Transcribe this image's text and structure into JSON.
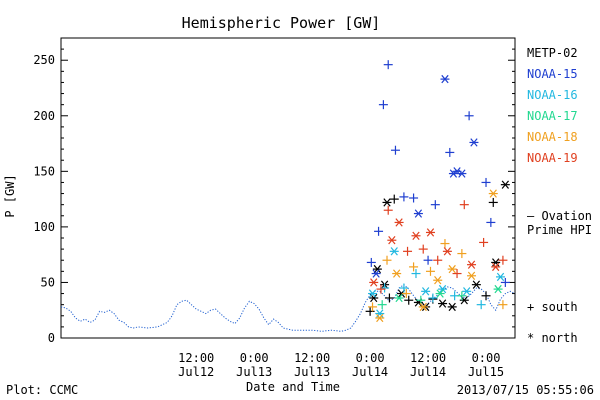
{
  "chart_data": {
    "type": "scatter",
    "title": "Hemispheric Power [GW]",
    "xlabel": "Date and Time",
    "ylabel": "P [GW]",
    "xlim": [
      "2013-07-11 08:00",
      "2013-07-15 06:00"
    ],
    "ylim": [
      0,
      270
    ],
    "x_ticks": [
      {
        "time": "2013-07-12 12:00",
        "line1": "12:00",
        "line2": "Jul12"
      },
      {
        "time": "2013-07-13 00:00",
        "line1": "0:00",
        "line2": "Jul13"
      },
      {
        "time": "2013-07-13 12:00",
        "line1": "12:00",
        "line2": "Jul13"
      },
      {
        "time": "2013-07-14 00:00",
        "line1": "0:00",
        "line2": "Jul14"
      },
      {
        "time": "2013-07-14 12:00",
        "line1": "12:00",
        "line2": "Jul14"
      },
      {
        "time": "2013-07-15 00:00",
        "line1": "0:00",
        "line2": "Jul15"
      }
    ],
    "y_ticks": [
      0,
      50,
      100,
      150,
      200,
      250
    ],
    "legend": {
      "placement": "right",
      "satellites": [
        {
          "name": "METP-02",
          "color": "#000000"
        },
        {
          "name": "NOAA-15",
          "color": "#1f3fd0"
        },
        {
          "name": "NOAA-16",
          "color": "#22b8e0"
        },
        {
          "name": "NOAA-17",
          "color": "#22d890"
        },
        {
          "name": "NOAA-18",
          "color": "#f0a020"
        },
        {
          "name": "NOAA-19",
          "color": "#e04020"
        }
      ],
      "ovation_label_1": "— Ovation",
      "ovation_label_2": "Prime HPI",
      "ovation_color": "#1f5fd0",
      "markers": [
        {
          "symbol": "+",
          "label": "south"
        },
        {
          "symbol": "*",
          "label": "north"
        }
      ]
    },
    "series": [
      {
        "name": "Ovation Prime HPI",
        "kind": "line",
        "color": "#1f5fd0",
        "points": [
          [
            "2013-07-11 08:00",
            28
          ],
          [
            "2013-07-11 09:00",
            27
          ],
          [
            "2013-07-11 10:00",
            24
          ],
          [
            "2013-07-11 11:00",
            18
          ],
          [
            "2013-07-11 12:00",
            15
          ],
          [
            "2013-07-11 13:00",
            17
          ],
          [
            "2013-07-11 14:00",
            14
          ],
          [
            "2013-07-11 15:00",
            16
          ],
          [
            "2013-07-11 16:00",
            24
          ],
          [
            "2013-07-11 17:00",
            23
          ],
          [
            "2013-07-11 18:00",
            25
          ],
          [
            "2013-07-11 19:00",
            22
          ],
          [
            "2013-07-11 20:00",
            16
          ],
          [
            "2013-07-11 21:00",
            14
          ],
          [
            "2013-07-11 22:00",
            10
          ],
          [
            "2013-07-11 23:00",
            9
          ],
          [
            "2013-07-12 00:00",
            10
          ],
          [
            "2013-07-12 02:00",
            9
          ],
          [
            "2013-07-12 04:00",
            10
          ],
          [
            "2013-07-12 06:00",
            14
          ],
          [
            "2013-07-12 07:00",
            20
          ],
          [
            "2013-07-12 08:00",
            30
          ],
          [
            "2013-07-12 09:00",
            33
          ],
          [
            "2013-07-12 10:00",
            34
          ],
          [
            "2013-07-12 11:00",
            30
          ],
          [
            "2013-07-12 12:00",
            26
          ],
          [
            "2013-07-12 13:00",
            24
          ],
          [
            "2013-07-12 14:00",
            22
          ],
          [
            "2013-07-12 15:00",
            25
          ],
          [
            "2013-07-12 16:00",
            26
          ],
          [
            "2013-07-12 17:00",
            22
          ],
          [
            "2013-07-12 18:00",
            18
          ],
          [
            "2013-07-12 19:00",
            15
          ],
          [
            "2013-07-12 20:00",
            13
          ],
          [
            "2013-07-12 21:00",
            18
          ],
          [
            "2013-07-12 22:00",
            27
          ],
          [
            "2013-07-12 23:00",
            33
          ],
          [
            "2013-07-13 00:00",
            31
          ],
          [
            "2013-07-13 01:00",
            26
          ],
          [
            "2013-07-13 02:00",
            18
          ],
          [
            "2013-07-13 03:00",
            12
          ],
          [
            "2013-07-13 04:00",
            17
          ],
          [
            "2013-07-13 05:00",
            14
          ],
          [
            "2013-07-13 06:00",
            9
          ],
          [
            "2013-07-13 08:00",
            7
          ],
          [
            "2013-07-13 10:00",
            7
          ],
          [
            "2013-07-13 12:00",
            7
          ],
          [
            "2013-07-13 14:00",
            6
          ],
          [
            "2013-07-13 16:00",
            7
          ],
          [
            "2013-07-13 18:00",
            6
          ],
          [
            "2013-07-13 19:00",
            7
          ],
          [
            "2013-07-13 20:00",
            9
          ],
          [
            "2013-07-13 21:00",
            15
          ],
          [
            "2013-07-13 22:00",
            22
          ],
          [
            "2013-07-13 23:00",
            32
          ],
          [
            "2013-07-14 00:00",
            39
          ],
          [
            "2013-07-14 01:00",
            42
          ],
          [
            "2013-07-14 02:00",
            42
          ],
          [
            "2013-07-14 03:00",
            38
          ],
          [
            "2013-07-14 04:00",
            33
          ],
          [
            "2013-07-14 05:00",
            36
          ],
          [
            "2013-07-14 06:00",
            45
          ],
          [
            "2013-07-14 07:00",
            48
          ],
          [
            "2013-07-14 08:00",
            44
          ],
          [
            "2013-07-14 09:00",
            38
          ],
          [
            "2013-07-14 10:00",
            33
          ],
          [
            "2013-07-14 11:00",
            30
          ],
          [
            "2013-07-14 12:00",
            31
          ],
          [
            "2013-07-14 13:00",
            35
          ],
          [
            "2013-07-14 14:00",
            39
          ],
          [
            "2013-07-14 15:00",
            43
          ],
          [
            "2013-07-14 16:00",
            46
          ],
          [
            "2013-07-14 17:00",
            45
          ],
          [
            "2013-07-14 18:00",
            41
          ],
          [
            "2013-07-14 19:00",
            37
          ],
          [
            "2013-07-14 20:00",
            36
          ],
          [
            "2013-07-14 21:00",
            40
          ],
          [
            "2013-07-14 22:00",
            45
          ],
          [
            "2013-07-14 23:00",
            44
          ],
          [
            "2013-07-15 00:00",
            40
          ],
          [
            "2013-07-15 01:00",
            30
          ],
          [
            "2013-07-15 02:00",
            25
          ],
          [
            "2013-07-15 03:00",
            35
          ],
          [
            "2013-07-15 04:00",
            40
          ],
          [
            "2013-07-15 05:00",
            42
          ],
          [
            "2013-07-15 06:00",
            40
          ]
        ]
      },
      {
        "name": "METP-02",
        "kind": "markers",
        "color": "#000000",
        "points": [
          {
            "t": "2013-07-14 00:00",
            "y": 24,
            "m": "+"
          },
          {
            "t": "2013-07-14 00:45",
            "y": 36,
            "m": "*"
          },
          {
            "t": "2013-07-14 01:30",
            "y": 62,
            "m": "*"
          },
          {
            "t": "2013-07-14 03:00",
            "y": 48,
            "m": "*"
          },
          {
            "t": "2013-07-14 03:30",
            "y": 122,
            "m": "*"
          },
          {
            "t": "2013-07-14 04:00",
            "y": 36,
            "m": "+"
          },
          {
            "t": "2013-07-14 05:00",
            "y": 125,
            "m": "+"
          },
          {
            "t": "2013-07-14 06:30",
            "y": 40,
            "m": "*"
          },
          {
            "t": "2013-07-14 08:00",
            "y": 34,
            "m": "+"
          },
          {
            "t": "2013-07-14 10:00",
            "y": 32,
            "m": "*"
          },
          {
            "t": "2013-07-14 11:30",
            "y": 28,
            "m": "*"
          },
          {
            "t": "2013-07-14 13:00",
            "y": 35,
            "m": "+"
          },
          {
            "t": "2013-07-14 15:00",
            "y": 31,
            "m": "*"
          },
          {
            "t": "2013-07-14 17:00",
            "y": 28,
            "m": "*"
          },
          {
            "t": "2013-07-14 19:30",
            "y": 34,
            "m": "*"
          },
          {
            "t": "2013-07-14 22:00",
            "y": 48,
            "m": "*"
          },
          {
            "t": "2013-07-15 00:00",
            "y": 38,
            "m": "+"
          },
          {
            "t": "2013-07-15 01:30",
            "y": 122,
            "m": "+"
          },
          {
            "t": "2013-07-15 02:00",
            "y": 68,
            "m": "*"
          },
          {
            "t": "2013-07-15 04:00",
            "y": 138,
            "m": "*"
          }
        ]
      },
      {
        "name": "NOAA-15",
        "kind": "markers",
        "color": "#1f3fd0",
        "points": [
          {
            "t": "2013-07-14 00:15",
            "y": 68,
            "m": "+"
          },
          {
            "t": "2013-07-14 01:15",
            "y": 58,
            "m": "*"
          },
          {
            "t": "2013-07-14 01:45",
            "y": 96,
            "m": "+"
          },
          {
            "t": "2013-07-14 02:45",
            "y": 210,
            "m": "+"
          },
          {
            "t": "2013-07-14 03:45",
            "y": 246,
            "m": "+"
          },
          {
            "t": "2013-07-14 05:15",
            "y": 169,
            "m": "+"
          },
          {
            "t": "2013-07-14 07:00",
            "y": 127,
            "m": "+"
          },
          {
            "t": "2013-07-14 09:00",
            "y": 126,
            "m": "+"
          },
          {
            "t": "2013-07-14 10:00",
            "y": 112,
            "m": "*"
          },
          {
            "t": "2013-07-14 12:00",
            "y": 70,
            "m": "+"
          },
          {
            "t": "2013-07-14 13:30",
            "y": 120,
            "m": "+"
          },
          {
            "t": "2013-07-14 15:30",
            "y": 233,
            "m": "*"
          },
          {
            "t": "2013-07-14 16:30",
            "y": 167,
            "m": "+"
          },
          {
            "t": "2013-07-14 17:15",
            "y": 148,
            "m": "*"
          },
          {
            "t": "2013-07-14 18:00",
            "y": 150,
            "m": "*"
          },
          {
            "t": "2013-07-14 19:00",
            "y": 148,
            "m": "*"
          },
          {
            "t": "2013-07-14 20:30",
            "y": 200,
            "m": "+"
          },
          {
            "t": "2013-07-14 21:30",
            "y": 176,
            "m": "*"
          },
          {
            "t": "2013-07-15 00:00",
            "y": 140,
            "m": "+"
          },
          {
            "t": "2013-07-15 01:00",
            "y": 104,
            "m": "+"
          },
          {
            "t": "2013-07-15 04:00",
            "y": 50,
            "m": "+"
          }
        ]
      },
      {
        "name": "NOAA-16",
        "kind": "markers",
        "color": "#22b8e0",
        "points": [
          {
            "t": "2013-07-14 00:30",
            "y": 40,
            "m": "*"
          },
          {
            "t": "2013-07-14 02:00",
            "y": 22,
            "m": "*"
          },
          {
            "t": "2013-07-14 03:00",
            "y": 45,
            "m": "+"
          },
          {
            "t": "2013-07-14 05:00",
            "y": 78,
            "m": "*"
          },
          {
            "t": "2013-07-14 07:00",
            "y": 45,
            "m": "+"
          },
          {
            "t": "2013-07-14 09:30",
            "y": 58,
            "m": "+"
          },
          {
            "t": "2013-07-14 11:30",
            "y": 42,
            "m": "*"
          },
          {
            "t": "2013-07-14 13:00",
            "y": 36,
            "m": "+"
          },
          {
            "t": "2013-07-14 15:00",
            "y": 44,
            "m": "*"
          },
          {
            "t": "2013-07-14 17:30",
            "y": 38,
            "m": "+"
          },
          {
            "t": "2013-07-14 20:00",
            "y": 42,
            "m": "*"
          },
          {
            "t": "2013-07-14 23:00",
            "y": 30,
            "m": "+"
          },
          {
            "t": "2013-07-15 03:00",
            "y": 55,
            "m": "*"
          }
        ]
      },
      {
        "name": "NOAA-17",
        "kind": "markers",
        "color": "#22d890",
        "points": [
          {
            "t": "2013-07-14 02:30",
            "y": 30,
            "m": "+"
          },
          {
            "t": "2013-07-14 06:00",
            "y": 36,
            "m": "*"
          },
          {
            "t": "2013-07-14 10:30",
            "y": 34,
            "m": "+"
          },
          {
            "t": "2013-07-14 14:30",
            "y": 40,
            "m": "*"
          },
          {
            "t": "2013-07-14 19:00",
            "y": 38,
            "m": "+"
          },
          {
            "t": "2013-07-15 02:30",
            "y": 44,
            "m": "*"
          }
        ]
      },
      {
        "name": "NOAA-18",
        "kind": "markers",
        "color": "#f0a020",
        "points": [
          {
            "t": "2013-07-14 00:30",
            "y": 28,
            "m": "+"
          },
          {
            "t": "2013-07-14 02:00",
            "y": 18,
            "m": "*"
          },
          {
            "t": "2013-07-14 03:30",
            "y": 70,
            "m": "+"
          },
          {
            "t": "2013-07-14 05:30",
            "y": 58,
            "m": "*"
          },
          {
            "t": "2013-07-14 07:30",
            "y": 40,
            "m": "+"
          },
          {
            "t": "2013-07-14 09:00",
            "y": 64,
            "m": "+"
          },
          {
            "t": "2013-07-14 11:00",
            "y": 28,
            "m": "*"
          },
          {
            "t": "2013-07-14 12:30",
            "y": 60,
            "m": "+"
          },
          {
            "t": "2013-07-14 14:00",
            "y": 52,
            "m": "*"
          },
          {
            "t": "2013-07-14 15:30",
            "y": 85,
            "m": "+"
          },
          {
            "t": "2013-07-14 17:00",
            "y": 62,
            "m": "*"
          },
          {
            "t": "2013-07-14 19:00",
            "y": 76,
            "m": "+"
          },
          {
            "t": "2013-07-14 21:00",
            "y": 56,
            "m": "*"
          },
          {
            "t": "2013-07-15 01:30",
            "y": 130,
            "m": "*"
          },
          {
            "t": "2013-07-15 03:30",
            "y": 30,
            "m": "+"
          }
        ]
      },
      {
        "name": "NOAA-19",
        "kind": "markers",
        "color": "#e04020",
        "points": [
          {
            "t": "2013-07-14 00:45",
            "y": 50,
            "m": "*"
          },
          {
            "t": "2013-07-14 02:15",
            "y": 44,
            "m": "+"
          },
          {
            "t": "2013-07-14 03:45",
            "y": 115,
            "m": "+"
          },
          {
            "t": "2013-07-14 04:30",
            "y": 88,
            "m": "*"
          },
          {
            "t": "2013-07-14 06:00",
            "y": 104,
            "m": "*"
          },
          {
            "t": "2013-07-14 07:45",
            "y": 78,
            "m": "+"
          },
          {
            "t": "2013-07-14 09:30",
            "y": 92,
            "m": "*"
          },
          {
            "t": "2013-07-14 11:00",
            "y": 80,
            "m": "+"
          },
          {
            "t": "2013-07-14 12:30",
            "y": 95,
            "m": "*"
          },
          {
            "t": "2013-07-14 14:00",
            "y": 70,
            "m": "+"
          },
          {
            "t": "2013-07-14 16:00",
            "y": 78,
            "m": "*"
          },
          {
            "t": "2013-07-14 18:00",
            "y": 58,
            "m": "+"
          },
          {
            "t": "2013-07-14 19:30",
            "y": 120,
            "m": "+"
          },
          {
            "t": "2013-07-14 21:00",
            "y": 66,
            "m": "*"
          },
          {
            "t": "2013-07-14 23:30",
            "y": 86,
            "m": "+"
          },
          {
            "t": "2013-07-15 02:00",
            "y": 64,
            "m": "*"
          },
          {
            "t": "2013-07-15 03:30",
            "y": 70,
            "m": "+"
          }
        ]
      }
    ]
  },
  "footer": {
    "left": "Plot: CCMC",
    "right": "2013/07/15 05:55:06"
  }
}
